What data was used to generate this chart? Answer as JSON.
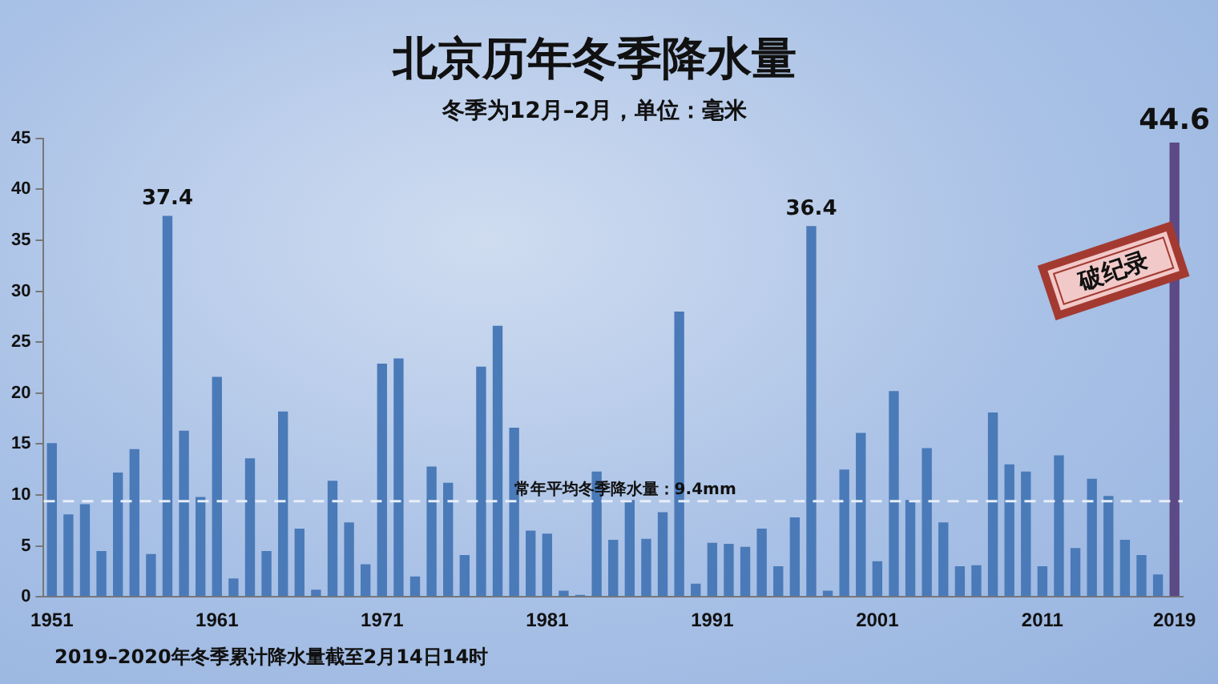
{
  "chart_data": {
    "type": "bar",
    "title": "北京历年冬季降水量",
    "subtitle": "冬季为12月–2月，单位：毫米",
    "categories": [
      "1951",
      null,
      null,
      null,
      null,
      null,
      null,
      null,
      null,
      null,
      "1961",
      null,
      null,
      null,
      null,
      null,
      null,
      null,
      null,
      null,
      "1971",
      null,
      null,
      null,
      null,
      null,
      null,
      null,
      null,
      null,
      "1981",
      null,
      null,
      null,
      null,
      null,
      null,
      null,
      null,
      null,
      "1991",
      null,
      null,
      null,
      null,
      null,
      null,
      null,
      null,
      null,
      "2001",
      null,
      null,
      null,
      null,
      null,
      null,
      null,
      null,
      null,
      "2011",
      null,
      null,
      null,
      null,
      null,
      null,
      null,
      "2019"
    ],
    "values": [
      15.1,
      8.1,
      9.1,
      4.5,
      12.2,
      14.5,
      4.2,
      37.4,
      16.3,
      9.8,
      21.6,
      1.8,
      13.6,
      4.5,
      18.2,
      6.7,
      0.7,
      11.4,
      7.3,
      3.2,
      22.9,
      23.4,
      2.0,
      12.8,
      11.2,
      4.1,
      22.6,
      26.6,
      16.6,
      6.5,
      6.2,
      0.6,
      0.2,
      12.3,
      5.6,
      9.5,
      5.7,
      8.3,
      28.0,
      1.3,
      5.3,
      5.2,
      4.9,
      6.7,
      3.0,
      7.8,
      36.4,
      0.6,
      12.5,
      16.1,
      3.5,
      20.2,
      9.5,
      14.6,
      7.3,
      3.0,
      3.1,
      18.1,
      13.0,
      12.3,
      3.0,
      13.9,
      4.8,
      11.6,
      9.9,
      5.6,
      4.1,
      2.2,
      44.6
    ],
    "colors": [
      "#4a7ab8",
      "#4a7ab8",
      "#4a7ab8",
      "#4a7ab8",
      "#4a7ab8",
      "#4a7ab8",
      "#4a7ab8",
      "#4a7ab8",
      "#4a7ab8",
      "#4a7ab8",
      "#4a7ab8",
      "#4a7ab8",
      "#4a7ab8",
      "#4a7ab8",
      "#4a7ab8",
      "#4a7ab8",
      "#4a7ab8",
      "#4a7ab8",
      "#4a7ab8",
      "#4a7ab8",
      "#4a7ab8",
      "#4a7ab8",
      "#4a7ab8",
      "#4a7ab8",
      "#4a7ab8",
      "#4a7ab8",
      "#4a7ab8",
      "#4a7ab8",
      "#4a7ab8",
      "#4a7ab8",
      "#4a7ab8",
      "#4a7ab8",
      "#4a7ab8",
      "#4a7ab8",
      "#4a7ab8",
      "#4a7ab8",
      "#4a7ab8",
      "#4a7ab8",
      "#4a7ab8",
      "#4a7ab8",
      "#4a7ab8",
      "#4a7ab8",
      "#4a7ab8",
      "#4a7ab8",
      "#4a7ab8",
      "#4a7ab8",
      "#4a7ab8",
      "#4a7ab8",
      "#4a7ab8",
      "#4a7ab8",
      "#4a7ab8",
      "#4a7ab8",
      "#4a7ab8",
      "#4a7ab8",
      "#4a7ab8",
      "#4a7ab8",
      "#4a7ab8",
      "#4a7ab8",
      "#4a7ab8",
      "#4a7ab8",
      "#4a7ab8",
      "#4a7ab8",
      "#4a7ab8",
      "#4a7ab8",
      "#4a7ab8",
      "#4a7ab8",
      "#4a7ab8",
      "#4a7ab8",
      "#5b4a85"
    ],
    "value_labels": [
      null,
      null,
      null,
      null,
      null,
      null,
      null,
      "37.4",
      null,
      null,
      null,
      null,
      null,
      null,
      null,
      null,
      null,
      null,
      null,
      null,
      null,
      null,
      null,
      null,
      null,
      null,
      null,
      null,
      null,
      null,
      null,
      null,
      null,
      null,
      null,
      null,
      null,
      null,
      null,
      null,
      null,
      null,
      null,
      null,
      null,
      null,
      "36.4",
      null,
      null,
      null,
      null,
      null,
      null,
      null,
      null,
      null,
      null,
      null,
      null,
      null,
      null,
      null,
      null,
      null,
      null,
      null,
      null,
      null,
      "44.6"
    ],
    "ylim": [
      0,
      45
    ],
    "yticks": [
      0,
      5,
      10,
      15,
      20,
      25,
      30,
      35,
      40,
      45
    ],
    "grid": false,
    "legend": false,
    "ref_lines": [
      {
        "axis": "y",
        "value": 9.4,
        "label": "常年平均冬季降水量：9.4mm",
        "color": "#e8eef8",
        "line_style": "dashed"
      }
    ],
    "annotations": [
      {
        "text": "破纪录",
        "x": "2019",
        "y": 32
      },
      "2019–2020年冬季累计降水量截至2月14日14时"
    ]
  }
}
